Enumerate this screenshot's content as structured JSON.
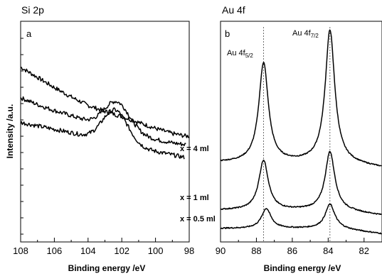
{
  "chart_data": [
    {
      "type": "line",
      "title": "Si 2p",
      "panel_label": "a",
      "xlabel": "Binding energy /eV",
      "ylabel": "Intensity /a.u.",
      "xlim": [
        108,
        98
      ],
      "x_reversed": true,
      "xticks": [
        108,
        106,
        104,
        102,
        100,
        98
      ],
      "yticks": "unlabeled",
      "series": [
        {
          "label": "x = 4 ml",
          "peak": {
            "center": 102.4,
            "height": 0
          },
          "start": 108,
          "end": 98,
          "points": [
            [
              108,
              92
            ],
            [
              107,
              80
            ],
            [
              106,
              68
            ],
            [
              105,
              57
            ],
            [
              104,
              47
            ],
            [
              103,
              40
            ],
            [
              102,
              34
            ],
            [
              101,
              27
            ],
            [
              100,
              20
            ],
            [
              99,
              14
            ],
            [
              98.2,
              11
            ]
          ]
        },
        {
          "label": "x = 1 ml",
          "peak": {
            "center": 102.3,
            "height": 33
          },
          "start": 108,
          "end": 98.2,
          "points": [
            [
              108,
              56
            ],
            [
              107,
              48
            ],
            [
              106,
              41
            ],
            [
              105,
              35
            ],
            [
              104,
              28
            ],
            [
              103,
              22
            ],
            [
              102,
              17
            ],
            [
              101,
              12
            ],
            [
              100,
              7
            ],
            [
              99,
              3
            ],
            [
              98.2,
              1
            ]
          ]
        },
        {
          "label": "x = 0.5 ml",
          "peak": {
            "center": 102.4,
            "height": 39
          },
          "start": 108,
          "end": 98.3,
          "points": [
            [
              108,
              27
            ],
            [
              107,
              23
            ],
            [
              106,
              19
            ],
            [
              105,
              15
            ],
            [
              104,
              10
            ],
            [
              103,
              5
            ],
            [
              102,
              1
            ],
            [
              101,
              -3
            ],
            [
              100,
              -7
            ],
            [
              99,
              -11
            ],
            [
              98.3,
              -14
            ]
          ]
        }
      ]
    },
    {
      "type": "line",
      "title": "Au 4f",
      "panel_label": "b",
      "xlabel": "Binding energy /eV",
      "xlim": [
        90,
        81
      ],
      "x_reversed": true,
      "xticks": [
        90,
        88,
        86,
        84,
        82
      ],
      "reference_lines": [
        87.6,
        83.9
      ],
      "annotations": [
        {
          "text": "Au 4f",
          "sub": "5/2",
          "x": 87.6
        },
        {
          "text": "Au 4f",
          "sub": "7/2",
          "x": 83.9
        }
      ],
      "series": [
        {
          "label": "x = 4 ml",
          "peaks": [
            {
              "center": 87.6,
              "height": 70
            },
            {
              "center": 83.9,
              "height": 93
            }
          ]
        },
        {
          "label": "x = 1 ml",
          "peaks": [
            {
              "center": 87.6,
              "height": 35
            },
            {
              "center": 83.9,
              "height": 41
            }
          ]
        },
        {
          "label": "x = 0.5 ml",
          "peaks": [
            {
              "center": 87.45,
              "height": 14
            },
            {
              "center": 83.9,
              "height": 17
            }
          ]
        }
      ]
    }
  ]
}
